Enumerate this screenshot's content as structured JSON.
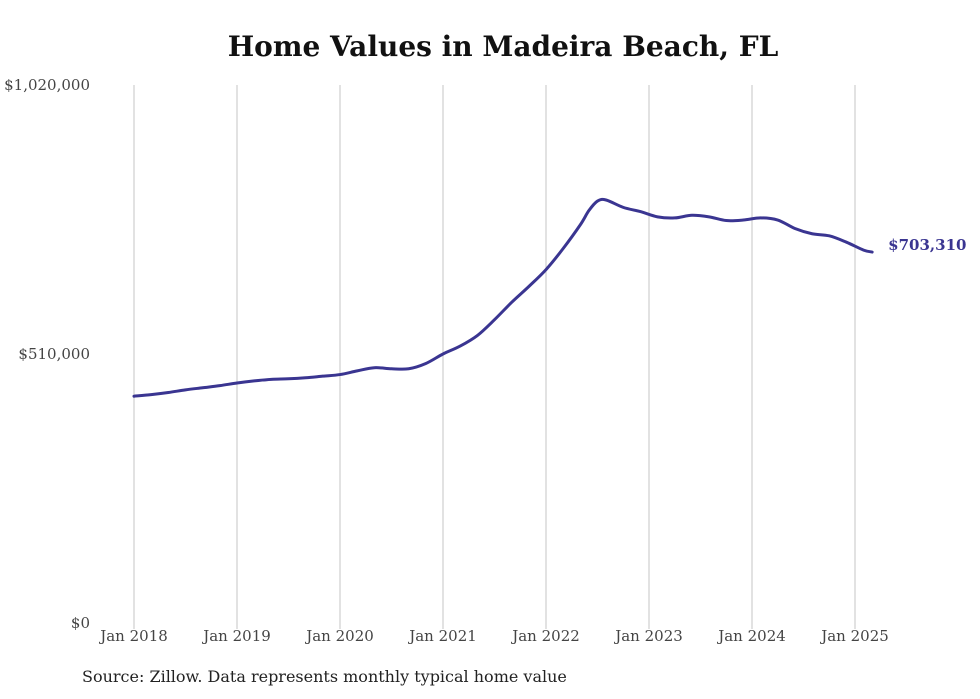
{
  "chart_data": {
    "type": "line",
    "title": "Home Values in Madeira Beach, FL",
    "xlabel": "",
    "ylabel": "",
    "ylim": [
      0,
      1020000
    ],
    "y_tick_values": [
      0,
      510000,
      1020000
    ],
    "y_tick_labels": [
      "$0",
      "$510,000",
      "$1,020,000"
    ],
    "x_range": [
      "2018-01",
      "2025-03"
    ],
    "x_tick_labels": [
      "Jan 2018",
      "Jan 2019",
      "Jan 2020",
      "Jan 2021",
      "Jan 2022",
      "Jan 2023",
      "Jan 2024",
      "Jan 2025"
    ],
    "x_tick_values": [
      "2018-01",
      "2019-01",
      "2020-01",
      "2021-01",
      "2022-01",
      "2023-01",
      "2024-01",
      "2025-01"
    ],
    "grid": "vertical",
    "line_color": "#3a3591",
    "end_label": "$703,310",
    "series": [
      {
        "points": [
          [
            "2018-01",
            430000
          ],
          [
            "2018-03",
            433000
          ],
          [
            "2018-05",
            437000
          ],
          [
            "2018-07",
            442000
          ],
          [
            "2018-09",
            446000
          ],
          [
            "2018-11",
            450000
          ],
          [
            "2019-01",
            455000
          ],
          [
            "2019-03",
            459000
          ],
          [
            "2019-05",
            462000
          ],
          [
            "2019-07",
            463000
          ],
          [
            "2019-09",
            465000
          ],
          [
            "2019-11",
            468000
          ],
          [
            "2020-01",
            471000
          ],
          [
            "2020-03",
            478000
          ],
          [
            "2020-05",
            484000
          ],
          [
            "2020-07",
            482000
          ],
          [
            "2020-09",
            482000
          ],
          [
            "2020-11",
            492000
          ],
          [
            "2021-01",
            510000
          ],
          [
            "2021-03",
            525000
          ],
          [
            "2021-05",
            545000
          ],
          [
            "2021-07",
            575000
          ],
          [
            "2021-09",
            608000
          ],
          [
            "2021-11",
            638000
          ],
          [
            "2022-01",
            670000
          ],
          [
            "2022-03",
            710000
          ],
          [
            "2022-05",
            755000
          ],
          [
            "2022-06",
            782000
          ],
          [
            "2022-07",
            800000
          ],
          [
            "2022-08",
            802000
          ],
          [
            "2022-10",
            788000
          ],
          [
            "2022-12",
            780000
          ],
          [
            "2023-02",
            770000
          ],
          [
            "2023-04",
            768000
          ],
          [
            "2023-06",
            773000
          ],
          [
            "2023-08",
            770000
          ],
          [
            "2023-10",
            763000
          ],
          [
            "2023-12",
            764000
          ],
          [
            "2024-02",
            768000
          ],
          [
            "2024-04",
            764000
          ],
          [
            "2024-06",
            748000
          ],
          [
            "2024-08",
            738000
          ],
          [
            "2024-10",
            734000
          ],
          [
            "2024-12",
            722000
          ],
          [
            "2025-02",
            707000
          ],
          [
            "2025-03",
            703310
          ]
        ]
      }
    ]
  },
  "source_note": "Source: Zillow. Data represents monthly typical home value"
}
